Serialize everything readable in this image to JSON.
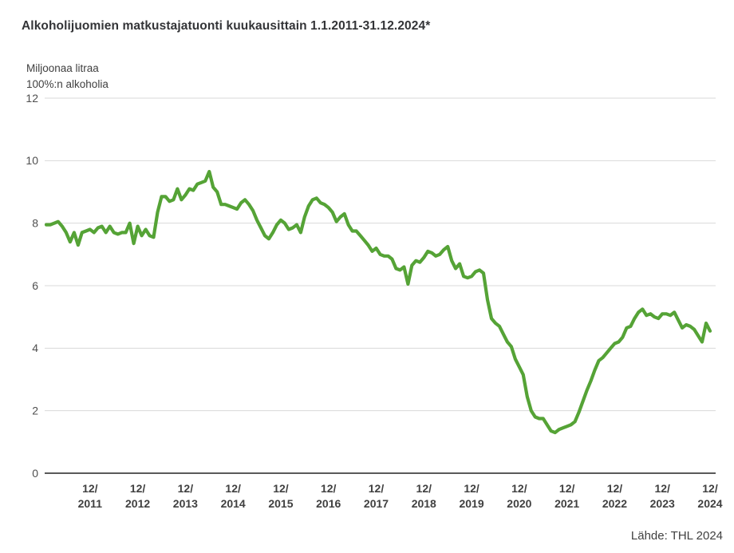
{
  "title": "Alkoholijuomien matkustajatuonti kuukausittain 1.1.2011-31.12.2024*",
  "unit_label": {
    "line1": "Miljoonaa litraa",
    "line2": "100%:n alkoholia"
  },
  "source": "Lähde: THL 2024",
  "colors": {
    "line": "#55a336",
    "grid": "#d9d9d9",
    "axis": "#595959",
    "y_tick_text": "#4f4f4f",
    "x_tick_text": "#404040"
  },
  "chart_data": {
    "type": "line",
    "title": "Alkoholijuomien matkustajatuonti kuukausittain 1.1.2011-31.12.2024*",
    "xlabel": "",
    "ylabel": "Miljoonaa litraa 100%:n alkoholia",
    "ylim": [
      0,
      12
    ],
    "ytick_interval": 2,
    "grid": "horizontal-only",
    "legend": "none",
    "x_range_months": "2011-01 to 2024-12",
    "xticks": [
      {
        "line1": "12/",
        "line2": "2011"
      },
      {
        "line1": "12/",
        "line2": "2012"
      },
      {
        "line1": "12/",
        "line2": "2013"
      },
      {
        "line1": "12/",
        "line2": "2014"
      },
      {
        "line1": "12/",
        "line2": "2015"
      },
      {
        "line1": "12/",
        "line2": "2016"
      },
      {
        "line1": "12/",
        "line2": "2017"
      },
      {
        "line1": "12/",
        "line2": "2018"
      },
      {
        "line1": "12/",
        "line2": "2019"
      },
      {
        "line1": "12/",
        "line2": "2020"
      },
      {
        "line1": "12/",
        "line2": "2021"
      },
      {
        "line1": "12/",
        "line2": "2022"
      },
      {
        "line1": "12/",
        "line2": "2023"
      },
      {
        "line1": "12/",
        "line2": "2024"
      }
    ],
    "series": [
      {
        "name": "Alkoholijuomien matkustajatuonti",
        "start_month": "2011-01",
        "values": [
          7.95,
          7.95,
          8.0,
          8.05,
          7.9,
          7.7,
          7.4,
          7.7,
          7.3,
          7.7,
          7.75,
          7.8,
          7.7,
          7.85,
          7.9,
          7.7,
          7.9,
          7.7,
          7.65,
          7.7,
          7.7,
          8.0,
          7.35,
          7.9,
          7.6,
          7.8,
          7.6,
          7.55,
          8.35,
          8.85,
          8.85,
          8.7,
          8.75,
          9.1,
          8.75,
          8.9,
          9.1,
          9.05,
          9.25,
          9.3,
          9.35,
          9.65,
          9.15,
          9.0,
          8.6,
          8.6,
          8.55,
          8.5,
          8.45,
          8.65,
          8.75,
          8.6,
          8.4,
          8.1,
          7.85,
          7.6,
          7.5,
          7.7,
          7.95,
          8.1,
          8.0,
          7.8,
          7.85,
          7.95,
          7.7,
          8.2,
          8.55,
          8.75,
          8.8,
          8.65,
          8.6,
          8.5,
          8.35,
          8.05,
          8.2,
          8.3,
          7.95,
          7.75,
          7.75,
          7.6,
          7.45,
          7.3,
          7.1,
          7.2,
          7.0,
          6.95,
          6.95,
          6.85,
          6.55,
          6.5,
          6.6,
          6.05,
          6.65,
          6.8,
          6.75,
          6.9,
          7.1,
          7.05,
          6.95,
          7.0,
          7.15,
          7.25,
          6.8,
          6.55,
          6.7,
          6.3,
          6.25,
          6.3,
          6.45,
          6.5,
          6.4,
          5.55,
          4.95,
          4.8,
          4.7,
          4.45,
          4.2,
          4.05,
          3.65,
          3.4,
          3.15,
          2.45,
          2.0,
          1.8,
          1.75,
          1.75,
          1.55,
          1.35,
          1.3,
          1.4,
          1.45,
          1.5,
          1.55,
          1.65,
          1.95,
          2.3,
          2.65,
          2.95,
          3.3,
          3.6,
          3.7,
          3.85,
          4.0,
          4.15,
          4.2,
          4.35,
          4.65,
          4.7,
          4.95,
          5.15,
          5.25,
          5.05,
          5.1,
          5.0,
          4.95,
          5.1,
          5.1,
          5.05,
          5.15,
          4.9,
          4.65,
          4.75,
          4.7,
          4.6,
          4.4,
          4.2,
          4.8,
          4.55
        ]
      }
    ]
  }
}
